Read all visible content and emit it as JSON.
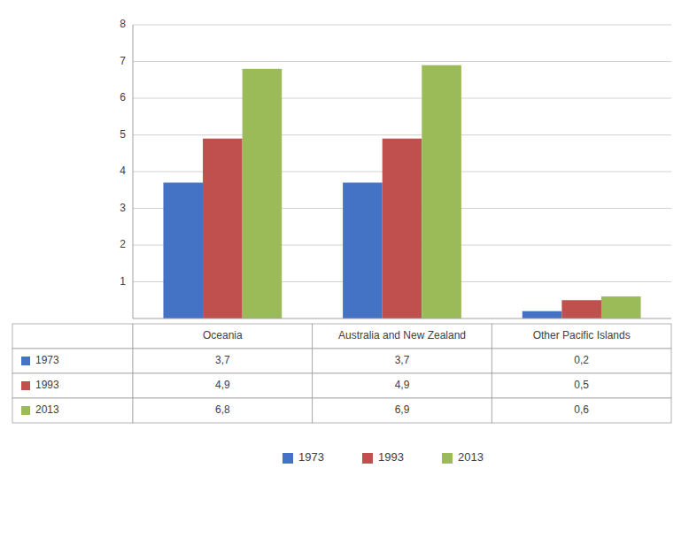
{
  "chart_data": {
    "type": "bar",
    "categories": [
      "Oceania",
      "Australia and New Zealand",
      "Other Pacific Islands"
    ],
    "series": [
      {
        "name": "1973",
        "color": "#4472C4",
        "values": [
          3.7,
          3.7,
          0.2
        ],
        "value_labels": [
          "3,7",
          "3,7",
          "0,2"
        ]
      },
      {
        "name": "1993",
        "color": "#C0504D",
        "values": [
          4.9,
          4.9,
          0.5
        ],
        "value_labels": [
          "4,9",
          "4,9",
          "0,5"
        ]
      },
      {
        "name": "2013",
        "color": "#9BBB59",
        "values": [
          6.8,
          6.9,
          0.6
        ],
        "value_labels": [
          "6,8",
          "6,9",
          "0,6"
        ]
      }
    ],
    "ylim": [
      0,
      8
    ],
    "yticks": [
      1,
      2,
      3,
      4,
      5,
      6,
      7,
      8
    ],
    "grid": true,
    "tick_labels": "y",
    "legend": "bottom"
  }
}
